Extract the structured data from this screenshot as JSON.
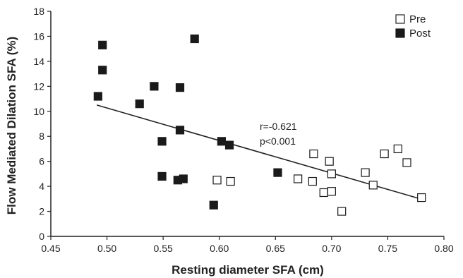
{
  "chart_data": {
    "type": "scatter",
    "xlabel": "Resting diameter SFA (cm)",
    "ylabel": "Flow Mediated Dilation SFA (%)",
    "xlim": [
      0.45,
      0.8
    ],
    "ylim": [
      0,
      18
    ],
    "x_ticks": [
      "0.45",
      "0.50",
      "0.55",
      "0.60",
      "0.65",
      "0.70",
      "0.75",
      "0.80"
    ],
    "y_ticks": [
      "0",
      "2",
      "4",
      "6",
      "8",
      "10",
      "12",
      "14",
      "16",
      "18"
    ],
    "grid": false,
    "legend_position": "top-right",
    "series": [
      {
        "name": "Pre",
        "marker": "open-square",
        "color": "#1a1a1a",
        "points": [
          {
            "x": 0.598,
            "y": 4.5
          },
          {
            "x": 0.61,
            "y": 4.4
          },
          {
            "x": 0.67,
            "y": 4.6
          },
          {
            "x": 0.683,
            "y": 4.4
          },
          {
            "x": 0.684,
            "y": 6.6
          },
          {
            "x": 0.693,
            "y": 3.5
          },
          {
            "x": 0.698,
            "y": 6.0
          },
          {
            "x": 0.7,
            "y": 3.6
          },
          {
            "x": 0.7,
            "y": 5.0
          },
          {
            "x": 0.709,
            "y": 2.0
          },
          {
            "x": 0.73,
            "y": 5.1
          },
          {
            "x": 0.737,
            "y": 4.1
          },
          {
            "x": 0.747,
            "y": 6.6
          },
          {
            "x": 0.759,
            "y": 7.0
          },
          {
            "x": 0.767,
            "y": 5.9
          },
          {
            "x": 0.78,
            "y": 3.1
          }
        ]
      },
      {
        "name": "Post",
        "marker": "filled-square",
        "color": "#1a1a1a",
        "points": [
          {
            "x": 0.492,
            "y": 11.2
          },
          {
            "x": 0.496,
            "y": 15.3
          },
          {
            "x": 0.496,
            "y": 13.3
          },
          {
            "x": 0.529,
            "y": 10.6
          },
          {
            "x": 0.542,
            "y": 12.0
          },
          {
            "x": 0.549,
            "y": 7.6
          },
          {
            "x": 0.549,
            "y": 4.8
          },
          {
            "x": 0.563,
            "y": 4.5
          },
          {
            "x": 0.565,
            "y": 11.9
          },
          {
            "x": 0.565,
            "y": 8.5
          },
          {
            "x": 0.568,
            "y": 4.6
          },
          {
            "x": 0.578,
            "y": 15.8
          },
          {
            "x": 0.595,
            "y": 2.5
          },
          {
            "x": 0.602,
            "y": 7.6
          },
          {
            "x": 0.609,
            "y": 7.3
          },
          {
            "x": 0.652,
            "y": 5.1
          }
        ]
      }
    ],
    "trendline": {
      "x": [
        0.491,
        0.781
      ],
      "y": [
        10.5,
        2.95
      ]
    },
    "annotations": [
      "r=-0.621",
      "p<0.001"
    ]
  }
}
